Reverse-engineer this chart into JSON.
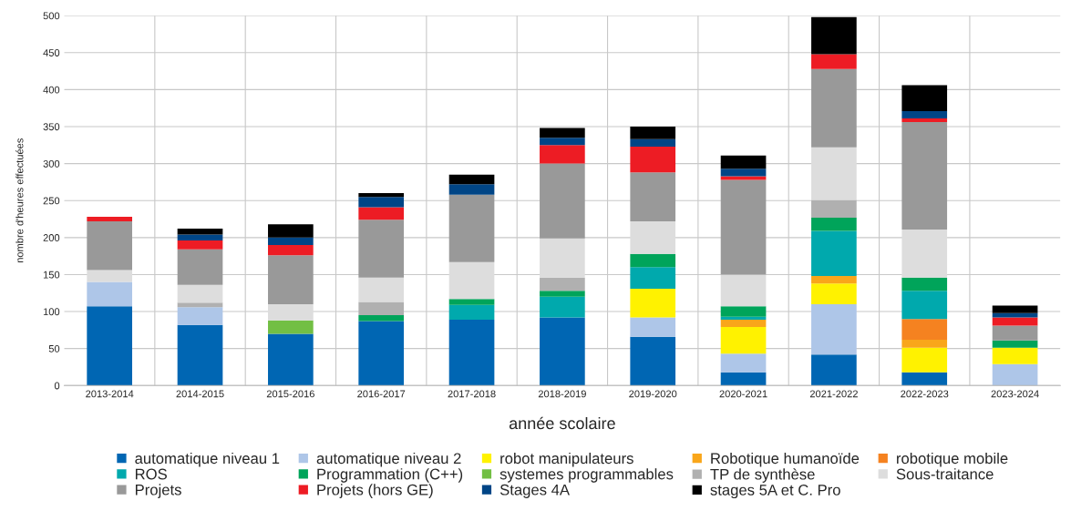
{
  "chart_data": {
    "type": "bar",
    "stacked": true,
    "xlabel": "année scolaire",
    "ylabel": "nombre d'heures effectuées",
    "categories": [
      "2013-2014",
      "2014-2015",
      "2015-2016",
      "2016-2017",
      "2017-2018",
      "2018-2019",
      "2019-2020",
      "2020-2021",
      "2021-2022",
      "2022-2023",
      "2023-2024"
    ],
    "ylim": [
      0,
      500
    ],
    "yticks": [
      0,
      50,
      100,
      150,
      200,
      250,
      300,
      350,
      400,
      450,
      500
    ],
    "grid": true,
    "legend": "bottom",
    "series": [
      {
        "name": "automatique niveau 1",
        "color": "#0066b3",
        "values": [
          107,
          82,
          70,
          87,
          89,
          92,
          66,
          18,
          42,
          18,
          null
        ]
      },
      {
        "name": "automatique niveau 2",
        "color": "#aec6e8",
        "values": [
          33,
          24,
          null,
          null,
          null,
          null,
          26,
          25,
          68,
          null,
          29
        ]
      },
      {
        "name": "robot manipulateurs",
        "color": "#fff200",
        "values": [
          null,
          null,
          null,
          null,
          null,
          null,
          39,
          36,
          28,
          33,
          22
        ]
      },
      {
        "name": "Robotique humanoïde",
        "color": "#f9a61a",
        "values": [
          null,
          null,
          null,
          null,
          null,
          null,
          null,
          10,
          10,
          11,
          null
        ]
      },
      {
        "name": "robotique mobile",
        "color": "#f58220",
        "values": [
          null,
          null,
          null,
          null,
          null,
          null,
          null,
          null,
          null,
          28,
          null
        ]
      },
      {
        "name": "ROS",
        "color": "#00a9ad",
        "values": [
          null,
          null,
          null,
          null,
          20,
          28,
          29,
          4,
          61,
          38,
          null
        ]
      },
      {
        "name": "Programmation (C++)",
        "color": "#00a45a",
        "values": [
          null,
          null,
          null,
          8,
          8,
          8,
          18,
          14,
          18,
          18,
          10
        ]
      },
      {
        "name": "systemes programmables",
        "color": "#72bf44",
        "values": [
          null,
          null,
          18,
          null,
          null,
          null,
          null,
          null,
          null,
          null,
          null
        ]
      },
      {
        "name": "TP de synthèse",
        "color": "#b0b0b0",
        "values": [
          null,
          6,
          null,
          18,
          null,
          18,
          null,
          null,
          24,
          null,
          null
        ]
      },
      {
        "name": "Sous-traitance",
        "color": "#dddddd",
        "values": [
          16,
          24,
          22,
          33,
          50,
          53,
          44,
          43,
          71,
          65,
          null
        ]
      },
      {
        "name": "Projets",
        "color": "#999999",
        "values": [
          66,
          48,
          66,
          78,
          91,
          101,
          66,
          128,
          106,
          145,
          20
        ]
      },
      {
        "name": "Projets (hors GE)",
        "color": "#ed1c24",
        "values": [
          6,
          12,
          14,
          17,
          null,
          25,
          35,
          5,
          20,
          5,
          11
        ]
      },
      {
        "name": "Stages 4A",
        "color": "#004586",
        "values": [
          null,
          8,
          10,
          14,
          14,
          10,
          10,
          10,
          null,
          10,
          6
        ]
      },
      {
        "name": "stages 5A et C. Pro",
        "color": "#000000",
        "values": [
          null,
          8,
          18,
          5,
          13,
          13,
          17,
          18,
          50,
          35,
          10
        ]
      }
    ]
  }
}
